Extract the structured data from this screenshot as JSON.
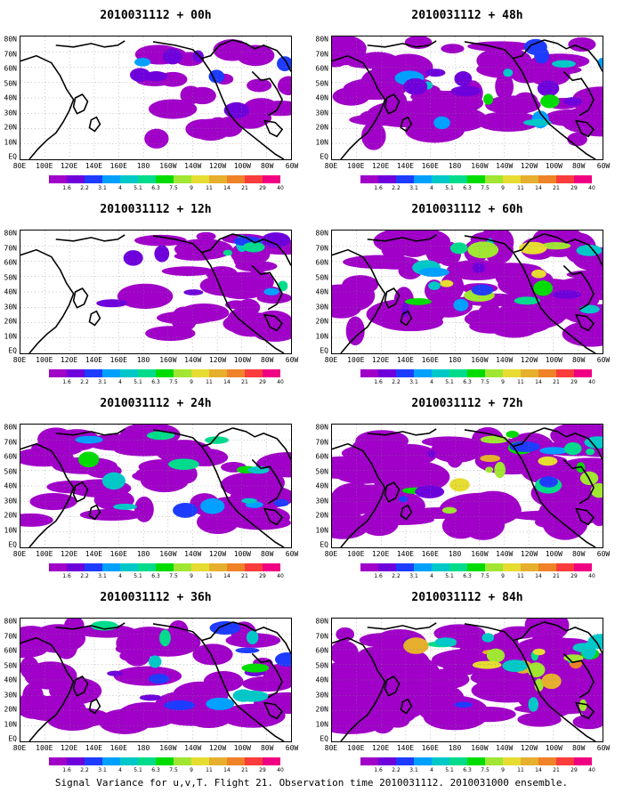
{
  "panels": [
    {
      "id": "p00",
      "title": "2010031112 + 00h",
      "level": 0.15
    },
    {
      "id": "p48",
      "title": "2010031112 + 48h",
      "level": 0.55
    },
    {
      "id": "p12",
      "title": "2010031112 + 12h",
      "level": 0.3
    },
    {
      "id": "p60",
      "title": "2010031112 + 60h",
      "level": 0.65
    },
    {
      "id": "p24",
      "title": "2010031112 + 24h",
      "level": 0.4
    },
    {
      "id": "p72",
      "title": "2010031112 + 72h",
      "level": 0.72
    },
    {
      "id": "p36",
      "title": "2010031112 + 36h",
      "level": 0.48
    },
    {
      "id": "p84",
      "title": "2010031112 + 84h",
      "level": 0.82
    }
  ],
  "y_labels": [
    "80N",
    "70N",
    "60N",
    "50N",
    "40N",
    "30N",
    "20N",
    "10N",
    "EQ"
  ],
  "x_labels": [
    "80E",
    "100E",
    "120E",
    "140E",
    "160E",
    "180",
    "160W",
    "140W",
    "120W",
    "100W",
    "80W",
    "60W"
  ],
  "colorbar": {
    "labels": [
      "1.6",
      "2.2",
      "3.1",
      "4",
      "5.1",
      "6.3",
      "7.5",
      "9",
      "11",
      "14",
      "21",
      "29",
      "40"
    ],
    "colors": [
      "#a000c8",
      "#6e00dc",
      "#1e3cff",
      "#00a0ff",
      "#00c8c8",
      "#00dc8c",
      "#00dc00",
      "#a0e632",
      "#e6dc32",
      "#e6af2d",
      "#f08228",
      "#fa3c3c",
      "#f00082"
    ]
  },
  "footer": "Signal Variance for u,v,T. Flight 21. Observation time 2010031112. 2010031000 ensemble."
}
